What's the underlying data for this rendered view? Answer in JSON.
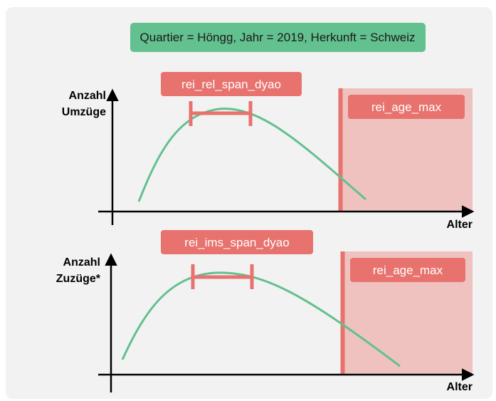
{
  "header": {
    "filter_text": "Quartier = Höngg, Jahr  = 2019, Herkunft = Schweiz"
  },
  "colors": {
    "header_bg": "#63c08f",
    "tag_bg": "#e8726d",
    "shade_bg": "#efc2c0",
    "cutoff_line": "#e8726d",
    "curve": "#63c08f",
    "axis": "#000000"
  },
  "panels": [
    {
      "y_label_line1": "Anzahl",
      "y_label_line2": "Umzüge",
      "x_label": "Alter",
      "span_tag": "rei_rel_span_dyao",
      "age_max_tag": "rei_age_max"
    },
    {
      "y_label_line1": "Anzahl",
      "y_label_line2": "Zuzüge*",
      "x_label": "Alter",
      "span_tag": "rei_ims_span_dyao",
      "age_max_tag": "rei_age_max"
    }
  ]
}
